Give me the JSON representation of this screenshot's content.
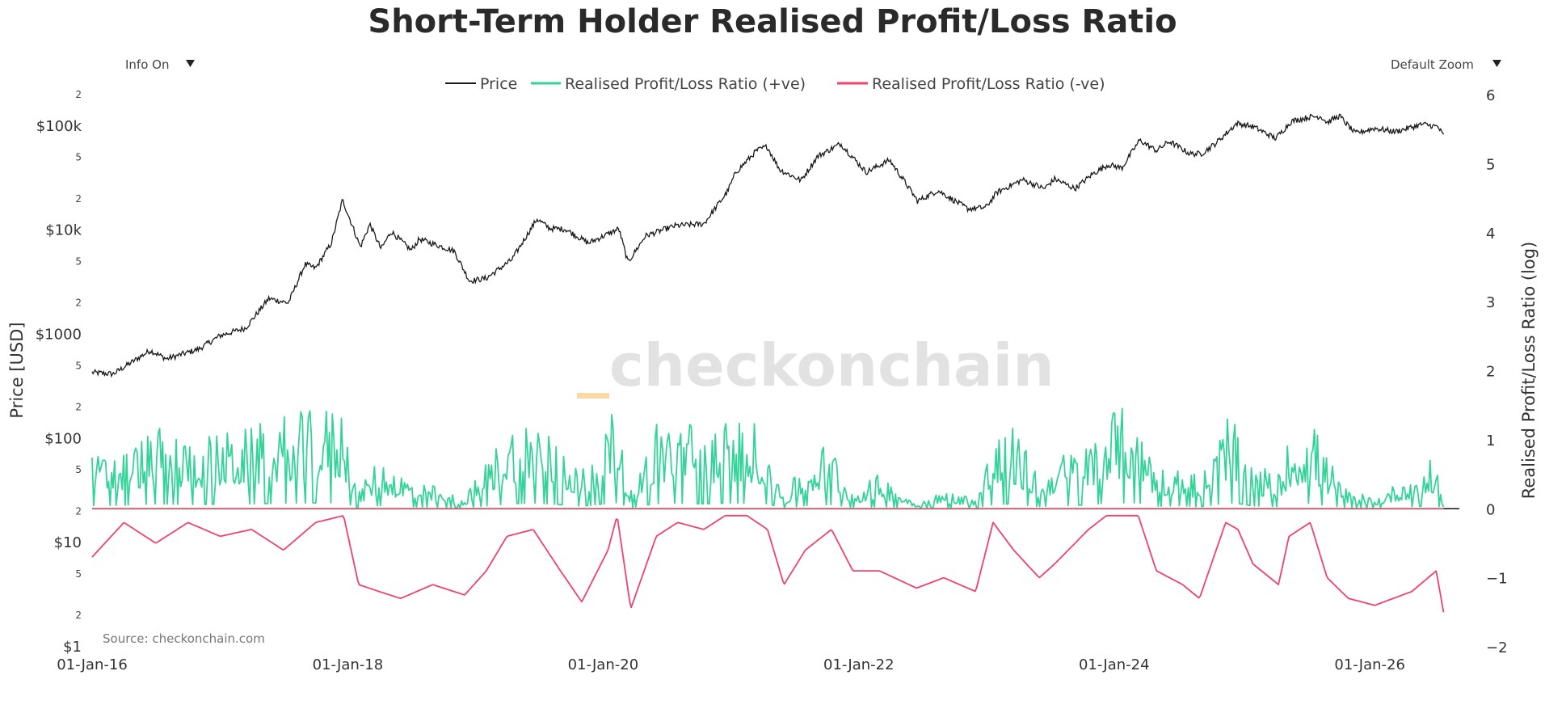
{
  "controls": {
    "info_label": "Info On",
    "zoom_label": "Default Zoom",
    "dropdown_icon": "triangle-down-icon"
  },
  "watermark": {
    "text": "checkonchain",
    "accent_color": "#f9d9a6"
  },
  "source_note": "Source: checkonchain.com",
  "colors": {
    "price": "#1a1a1a",
    "ratio_positive": "#34d399",
    "ratio_negative": "#f0426b",
    "zero_line": "#111111"
  },
  "chart_data": {
    "type": "line",
    "title": "Short-Term Holder Realised Profit/Loss Ratio",
    "legend_position": "top-center",
    "grid": false,
    "x": {
      "range": [
        "2016-01-01",
        "2026-08-15"
      ],
      "tick_labels": [
        "01-Jan-16",
        "01-Jan-18",
        "01-Jan-20",
        "01-Jan-22",
        "01-Jan-24",
        "01-Jan-26"
      ],
      "tick_dates": [
        "2016-01-01",
        "2018-01-01",
        "2020-01-01",
        "2022-01-01",
        "2024-01-01",
        "2026-01-01"
      ]
    },
    "y_left": {
      "label": "Price [USD]",
      "scale": "log",
      "range": [
        1,
        200000
      ],
      "major_ticks": [
        {
          "value": 1,
          "label": "$1"
        },
        {
          "value": 10,
          "label": "$10"
        },
        {
          "value": 100,
          "label": "$100"
        },
        {
          "value": 1000,
          "label": "$1000"
        },
        {
          "value": 10000,
          "label": "$10k"
        },
        {
          "value": 100000,
          "label": "$100k"
        }
      ],
      "minor_ticks": [
        {
          "value": 2,
          "label": "2"
        },
        {
          "value": 5,
          "label": "5"
        },
        {
          "value": 20,
          "label": "2"
        },
        {
          "value": 50,
          "label": "5"
        },
        {
          "value": 200,
          "label": "2"
        },
        {
          "value": 500,
          "label": "5"
        },
        {
          "value": 2000,
          "label": "2"
        },
        {
          "value": 5000,
          "label": "5"
        },
        {
          "value": 20000,
          "label": "2"
        },
        {
          "value": 50000,
          "label": "5"
        },
        {
          "value": 200000,
          "label": "2"
        }
      ]
    },
    "y_right": {
      "label": "Realised Profit/Loss Ratio (log)",
      "range": [
        -2,
        6
      ],
      "ticks": [
        -2,
        -1,
        0,
        1,
        2,
        3,
        4,
        5,
        6
      ]
    },
    "series": [
      {
        "name": "Price",
        "axis": "left",
        "points": [
          [
            "2016-01-01",
            430
          ],
          [
            "2016-03-01",
            415
          ],
          [
            "2016-06-15",
            700
          ],
          [
            "2016-08-01",
            580
          ],
          [
            "2016-11-01",
            720
          ],
          [
            "2017-01-01",
            970
          ],
          [
            "2017-03-15",
            1150
          ],
          [
            "2017-05-20",
            2200
          ],
          [
            "2017-07-15",
            2000
          ],
          [
            "2017-09-01",
            4700
          ],
          [
            "2017-10-01",
            4300
          ],
          [
            "2017-11-15",
            7500
          ],
          [
            "2017-12-17",
            19500
          ],
          [
            "2018-02-06",
            6900
          ],
          [
            "2018-03-05",
            11400
          ],
          [
            "2018-04-06",
            6600
          ],
          [
            "2018-05-05",
            9700
          ],
          [
            "2018-07-01",
            6400
          ],
          [
            "2018-07-25",
            8200
          ],
          [
            "2018-11-01",
            6300
          ],
          [
            "2018-12-15",
            3250
          ],
          [
            "2019-02-01",
            3450
          ],
          [
            "2019-04-15",
            5200
          ],
          [
            "2019-06-26",
            12800
          ],
          [
            "2019-08-01",
            10400
          ],
          [
            "2019-09-15",
            10200
          ],
          [
            "2019-11-20",
            7500
          ],
          [
            "2020-02-15",
            10300
          ],
          [
            "2020-03-12",
            4900
          ],
          [
            "2020-05-01",
            8800
          ],
          [
            "2020-07-25",
            11000
          ],
          [
            "2020-10-15",
            11500
          ],
          [
            "2020-12-20",
            23000
          ],
          [
            "2021-01-15",
            36000
          ],
          [
            "2021-03-15",
            58000
          ],
          [
            "2021-04-14",
            63500
          ],
          [
            "2021-05-20",
            38000
          ],
          [
            "2021-07-20",
            30000
          ],
          [
            "2021-09-05",
            51000
          ],
          [
            "2021-11-10",
            67500
          ],
          [
            "2022-01-22",
            36000
          ],
          [
            "2022-03-30",
            47000
          ],
          [
            "2022-05-10",
            30000
          ],
          [
            "2022-06-18",
            19000
          ],
          [
            "2022-08-15",
            24000
          ],
          [
            "2022-11-09",
            16000
          ],
          [
            "2022-12-30",
            16500
          ],
          [
            "2023-01-31",
            23000
          ],
          [
            "2023-04-14",
            30500
          ],
          [
            "2023-06-15",
            25000
          ],
          [
            "2023-07-15",
            31000
          ],
          [
            "2023-09-11",
            25000
          ],
          [
            "2023-10-31",
            34500
          ],
          [
            "2023-12-15",
            42500
          ],
          [
            "2024-01-23",
            39500
          ],
          [
            "2024-03-14",
            73000
          ],
          [
            "2024-05-01",
            58000
          ],
          [
            "2024-06-07",
            71000
          ],
          [
            "2024-08-05",
            54000
          ],
          [
            "2024-09-06",
            54000
          ],
          [
            "2024-10-15",
            67000
          ],
          [
            "2024-12-17",
            106000
          ],
          [
            "2025-02-03",
            98000
          ],
          [
            "2025-04-07",
            76000
          ],
          [
            "2025-05-22",
            111000
          ],
          [
            "2025-07-14",
            122000
          ],
          [
            "2025-08-14",
            123500
          ],
          [
            "2025-09-01",
            108000
          ],
          [
            "2025-10-06",
            125000
          ],
          [
            "2025-11-20",
            85000
          ],
          [
            "2026-01-15",
            95000
          ],
          [
            "2026-03-15",
            88000
          ],
          [
            "2026-06-01",
            104000
          ],
          [
            "2026-07-15",
            98000
          ],
          [
            "2026-07-31",
            80000
          ]
        ]
      },
      {
        "name": "Realised Profit/Loss Ratio (+ve)",
        "axis": "right",
        "envelope": [
          [
            "2016-01-01",
            0.9
          ],
          [
            "2016-04-01",
            1.0
          ],
          [
            "2016-07-01",
            1.4
          ],
          [
            "2016-10-01",
            1.2
          ],
          [
            "2017-01-01",
            1.3
          ],
          [
            "2017-04-01",
            1.4
          ],
          [
            "2017-07-01",
            1.6
          ],
          [
            "2017-10-01",
            1.7
          ],
          [
            "2017-12-20",
            1.75
          ],
          [
            "2018-02-01",
            0.3
          ],
          [
            "2018-04-01",
            0.9
          ],
          [
            "2018-06-01",
            0.6
          ],
          [
            "2018-09-01",
            0.4
          ],
          [
            "2018-12-01",
            0.2
          ],
          [
            "2019-02-01",
            0.8
          ],
          [
            "2019-04-01",
            1.4
          ],
          [
            "2019-06-15",
            1.65
          ],
          [
            "2019-09-01",
            1.2
          ],
          [
            "2019-11-01",
            0.7
          ],
          [
            "2020-01-15",
            1.5
          ],
          [
            "2020-02-10",
            1.8
          ],
          [
            "2020-03-20",
            0.3
          ],
          [
            "2020-06-01",
            1.5
          ],
          [
            "2020-08-01",
            1.6
          ],
          [
            "2020-10-15",
            1.4
          ],
          [
            "2020-12-15",
            1.6
          ],
          [
            "2021-02-15",
            1.55
          ],
          [
            "2021-04-15",
            1.4
          ],
          [
            "2021-06-01",
            0.2
          ],
          [
            "2021-08-01",
            0.9
          ],
          [
            "2021-10-15",
            1.2
          ],
          [
            "2021-12-15",
            0.3
          ],
          [
            "2022-03-01",
            0.6
          ],
          [
            "2022-06-15",
            0.1
          ],
          [
            "2022-09-01",
            0.3
          ],
          [
            "2022-12-01",
            0.2
          ],
          [
            "2023-01-20",
            1.2
          ],
          [
            "2023-03-20",
            1.4
          ],
          [
            "2023-06-01",
            0.6
          ],
          [
            "2023-07-15",
            0.9
          ],
          [
            "2023-10-20",
            1.1
          ],
          [
            "2023-12-10",
            1.7
          ],
          [
            "2024-03-10",
            1.75
          ],
          [
            "2024-05-01",
            0.7
          ],
          [
            "2024-07-15",
            0.9
          ],
          [
            "2024-09-01",
            0.5
          ],
          [
            "2024-11-15",
            1.65
          ],
          [
            "2024-12-20",
            1.5
          ],
          [
            "2025-02-01",
            0.8
          ],
          [
            "2025-04-15",
            0.6
          ],
          [
            "2025-05-15",
            1.2
          ],
          [
            "2025-07-15",
            1.6
          ],
          [
            "2025-09-01",
            0.9
          ],
          [
            "2025-11-01",
            0.3
          ],
          [
            "2026-01-15",
            0.2
          ],
          [
            "2026-05-01",
            0.6
          ],
          [
            "2026-07-10",
            0.9
          ],
          [
            "2026-07-31",
            0.1
          ]
        ]
      },
      {
        "name": "Realised Profit/Loss Ratio (-ve)",
        "axis": "right",
        "envelope": [
          [
            "2016-01-01",
            -0.7
          ],
          [
            "2016-04-01",
            -0.2
          ],
          [
            "2016-07-01",
            -0.5
          ],
          [
            "2016-10-01",
            -0.2
          ],
          [
            "2017-01-01",
            -0.4
          ],
          [
            "2017-04-01",
            -0.3
          ],
          [
            "2017-07-01",
            -0.6
          ],
          [
            "2017-10-01",
            -0.2
          ],
          [
            "2017-12-20",
            -0.1
          ],
          [
            "2018-02-01",
            -1.1
          ],
          [
            "2018-04-01",
            -1.2
          ],
          [
            "2018-06-01",
            -1.3
          ],
          [
            "2018-09-01",
            -1.1
          ],
          [
            "2018-12-01",
            -1.25
          ],
          [
            "2019-02-01",
            -0.9
          ],
          [
            "2019-04-01",
            -0.4
          ],
          [
            "2019-06-15",
            -0.3
          ],
          [
            "2019-09-01",
            -0.9
          ],
          [
            "2019-11-01",
            -1.35
          ],
          [
            "2020-01-15",
            -0.6
          ],
          [
            "2020-02-10",
            -0.1
          ],
          [
            "2020-03-20",
            -1.45
          ],
          [
            "2020-06-01",
            -0.4
          ],
          [
            "2020-08-01",
            -0.2
          ],
          [
            "2020-10-15",
            -0.3
          ],
          [
            "2020-12-15",
            -0.1
          ],
          [
            "2021-02-15",
            -0.1
          ],
          [
            "2021-04-15",
            -0.3
          ],
          [
            "2021-06-01",
            -1.1
          ],
          [
            "2021-08-01",
            -0.6
          ],
          [
            "2021-10-15",
            -0.3
          ],
          [
            "2021-12-15",
            -0.9
          ],
          [
            "2022-03-01",
            -0.9
          ],
          [
            "2022-06-15",
            -1.15
          ],
          [
            "2022-09-01",
            -1.0
          ],
          [
            "2022-12-01",
            -1.2
          ],
          [
            "2023-01-20",
            -0.2
          ],
          [
            "2023-03-20",
            -0.6
          ],
          [
            "2023-06-01",
            -1.0
          ],
          [
            "2023-07-15",
            -0.8
          ],
          [
            "2023-10-20",
            -0.3
          ],
          [
            "2023-12-10",
            -0.1
          ],
          [
            "2024-03-10",
            -0.1
          ],
          [
            "2024-05-01",
            -0.9
          ],
          [
            "2024-07-15",
            -1.1
          ],
          [
            "2024-09-01",
            -1.3
          ],
          [
            "2024-11-15",
            -0.2
          ],
          [
            "2024-12-20",
            -0.3
          ],
          [
            "2025-02-01",
            -0.8
          ],
          [
            "2025-04-15",
            -1.1
          ],
          [
            "2025-05-15",
            -0.4
          ],
          [
            "2025-07-15",
            -0.2
          ],
          [
            "2025-09-01",
            -1.0
          ],
          [
            "2025-11-01",
            -1.3
          ],
          [
            "2026-01-15",
            -1.4
          ],
          [
            "2026-05-01",
            -1.2
          ],
          [
            "2026-07-10",
            -0.9
          ],
          [
            "2026-07-31",
            -1.5
          ]
        ]
      }
    ]
  }
}
